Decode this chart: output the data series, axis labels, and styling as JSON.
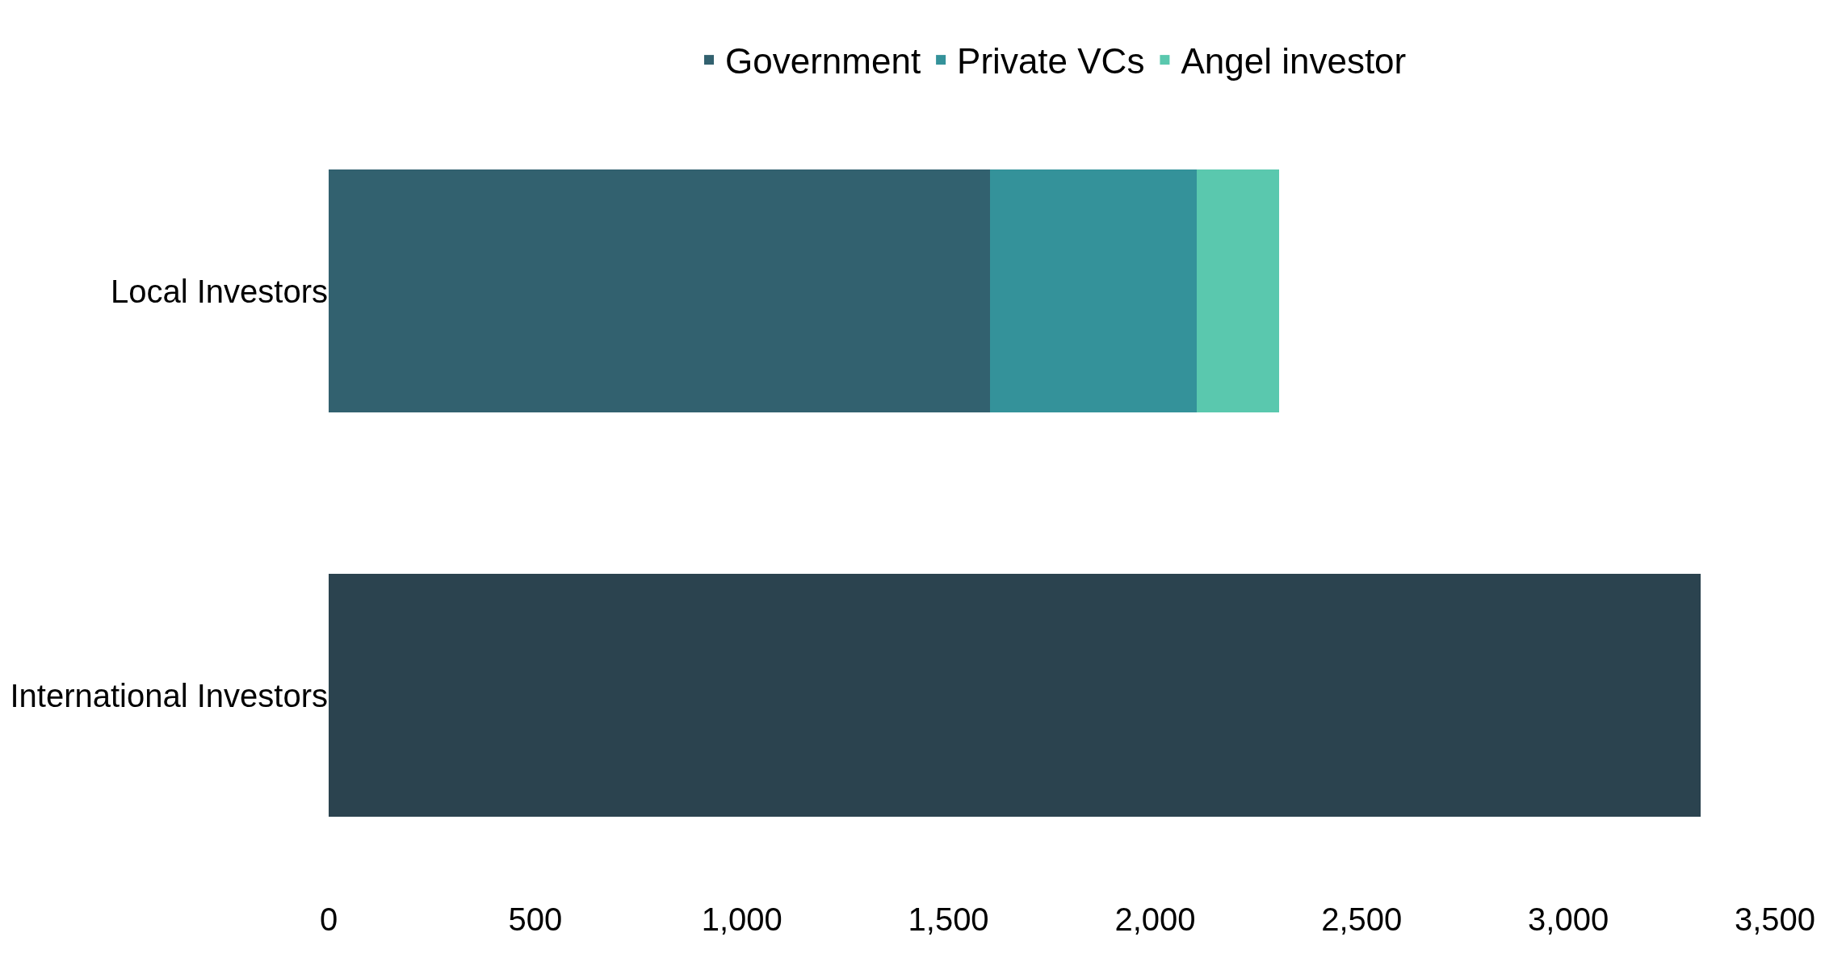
{
  "chart_data": {
    "type": "bar",
    "orientation": "horizontal",
    "stacked": true,
    "categories": [
      "Local Investors",
      "International Investors"
    ],
    "series": [
      {
        "name": "Government",
        "color": "#32616f",
        "values": [
          1600,
          null
        ]
      },
      {
        "name": "Private VCs",
        "color": "#34929a",
        "values": [
          500,
          null
        ]
      },
      {
        "name": "Angel investor",
        "color": "#5ac8ae",
        "values": [
          200,
          null
        ]
      },
      {
        "color": "#2b434f",
        "values": [
          null,
          3320
        ]
      }
    ],
    "xlim": [
      0,
      3500
    ],
    "xticks": [
      0,
      500,
      {
        "value": 1000,
        "label": "1,000"
      },
      {
        "value": 1500,
        "label": "1,500"
      },
      {
        "value": 2000,
        "label": "2,000"
      },
      {
        "value": 2500,
        "label": "2,500"
      },
      {
        "value": 3000,
        "label": "3,000"
      },
      {
        "value": 3500,
        "label": "3,500"
      }
    ],
    "legend": "top"
  }
}
